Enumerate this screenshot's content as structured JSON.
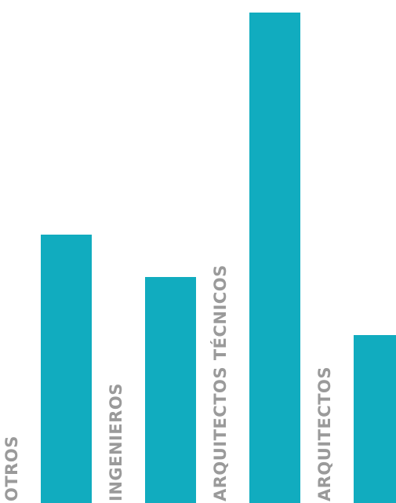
{
  "chart_data": {
    "type": "bar",
    "categories": [
      "OTROS",
      "INGENIEROS",
      "ARQUITECTOS TÉCNICOS",
      "ARQUITECTOS"
    ],
    "values": [
      342,
      288,
      625,
      214
    ],
    "ylim": [
      0,
      625
    ],
    "grid": false,
    "legend": "none",
    "bar_color": "#11acbf",
    "label_color": "#9a9a9a"
  }
}
